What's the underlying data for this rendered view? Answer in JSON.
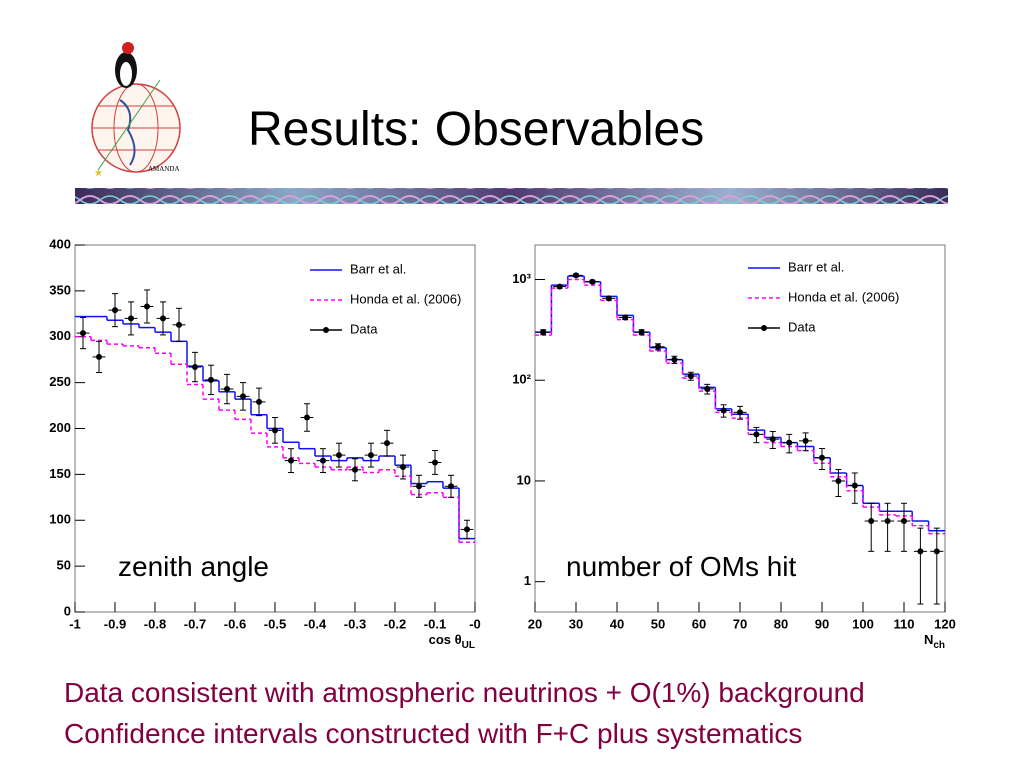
{
  "slide": {
    "title": "Results: Observables",
    "logo_text": "AMANDA",
    "lines": [
      "Data consistent with atmospheric neutrinos + O(1%) background",
      "Confidence intervals constructed with F+C plus systematics"
    ]
  },
  "chart_data": [
    {
      "type": "histogram",
      "annotation": "zenith angle",
      "xlabel": "cos θ",
      "xlabel_sub": "UL",
      "xlim": [
        -1,
        0
      ],
      "ylim": [
        0,
        400
      ],
      "log": false,
      "grid": false,
      "legend": "top-right",
      "xticks": [
        -1,
        -0.9,
        -0.8,
        -0.7,
        -0.6,
        -0.5,
        -0.4,
        -0.3,
        -0.2,
        -0.1,
        {
          "value": 0,
          "label": "-0"
        }
      ],
      "yticks": [
        0,
        50,
        100,
        150,
        200,
        250,
        300,
        350,
        400
      ],
      "bins": [
        -1,
        -0.96,
        -0.92,
        -0.88,
        -0.84,
        -0.8,
        -0.76,
        -0.72,
        -0.68,
        -0.64,
        -0.6,
        -0.56,
        -0.52,
        -0.48,
        -0.44,
        -0.4,
        -0.36,
        -0.32,
        -0.28,
        -0.24,
        -0.2,
        -0.16,
        -0.12,
        -0.08,
        -0.04,
        0
      ],
      "series": [
        {
          "name": "Barr et al.",
          "color": "#1010ff",
          "style": "step",
          "dashed": false,
          "values": [
            322,
            322,
            318,
            314,
            310,
            305,
            295,
            268,
            252,
            240,
            232,
            215,
            200,
            185,
            178,
            170,
            165,
            168,
            165,
            170,
            160,
            140,
            142,
            135,
            80
          ]
        },
        {
          "name": "Honda et al. (2006)",
          "color": "#ff00ff",
          "style": "step",
          "dashed": true,
          "values": [
            300,
            296,
            292,
            290,
            288,
            282,
            270,
            248,
            232,
            220,
            210,
            195,
            180,
            168,
            162,
            158,
            155,
            158,
            152,
            155,
            148,
            128,
            130,
            125,
            76
          ]
        },
        {
          "name": "Data",
          "color": "#000000",
          "style": "points",
          "values": [
            304,
            278,
            329,
            320,
            333,
            320,
            313,
            267,
            253,
            243,
            235,
            229,
            198,
            165,
            212,
            165,
            171,
            155,
            171,
            184,
            158,
            137,
            163,
            137,
            90
          ],
          "errors": [
            17,
            17,
            18,
            18,
            18,
            18,
            18,
            16,
            16,
            16,
            15,
            15,
            14,
            13,
            15,
            13,
            13,
            12,
            13,
            14,
            13,
            12,
            13,
            12,
            10
          ]
        }
      ]
    },
    {
      "type": "histogram",
      "annotation": "number of OMs hit",
      "xlabel": "N",
      "xlabel_sub": "ch",
      "xlim": [
        20,
        120
      ],
      "ylim": [
        0.5,
        2200
      ],
      "log": true,
      "grid": false,
      "legend": "top-right",
      "xticks": [
        20,
        30,
        40,
        50,
        60,
        70,
        80,
        90,
        100,
        110,
        120
      ],
      "yticks": [
        1,
        10,
        {
          "value": 100,
          "label": "10²"
        },
        {
          "value": 1000,
          "label": "10³"
        }
      ],
      "bins": [
        20,
        24,
        28,
        32,
        36,
        40,
        44,
        48,
        52,
        56,
        60,
        64,
        68,
        72,
        76,
        80,
        84,
        88,
        92,
        96,
        100,
        104,
        108,
        112,
        116,
        120
      ],
      "series": [
        {
          "name": "Barr et al.",
          "color": "#1010ff",
          "style": "step",
          "dashed": false,
          "values": [
            300,
            880,
            1080,
            950,
            680,
            440,
            300,
            210,
            160,
            115,
            85,
            52,
            46,
            32,
            27,
            24,
            22,
            17,
            12,
            9,
            6,
            5,
            5,
            4,
            3.2
          ]
        },
        {
          "name": "Honda et al. (2006)",
          "color": "#ff00ff",
          "style": "step",
          "dashed": true,
          "values": [
            280,
            820,
            1000,
            880,
            620,
            400,
            280,
            195,
            148,
            105,
            78,
            48,
            42,
            29,
            24,
            22,
            20,
            15,
            11,
            8,
            5.5,
            4.6,
            4.5,
            3.6,
            3
          ]
        },
        {
          "name": "Data",
          "color": "#000000",
          "style": "points",
          "values": [
            300,
            850,
            1100,
            950,
            650,
            420,
            300,
            215,
            160,
            110,
            82,
            50,
            48,
            29,
            26,
            24,
            25,
            17,
            10,
            9,
            4,
            4,
            4,
            2,
            2
          ],
          "errors": [
            17,
            29,
            33,
            31,
            25,
            20,
            17,
            15,
            13,
            10,
            9,
            7,
            7,
            5,
            5,
            5,
            5,
            4,
            3,
            3,
            2,
            2,
            2,
            1.4,
            1.4
          ]
        }
      ]
    }
  ]
}
